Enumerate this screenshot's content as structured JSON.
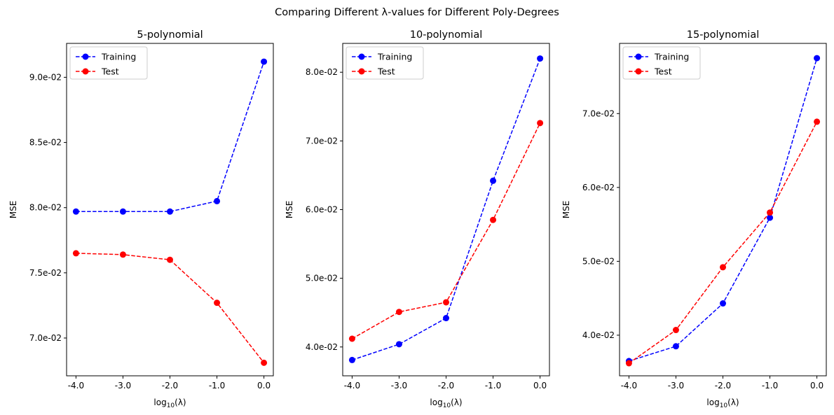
{
  "figure": {
    "suptitle": "Comparing Different λ-values for Different Poly-Degrees"
  },
  "chart_data": [
    {
      "type": "line",
      "title": "5-polynomial",
      "xlabel": "log10(λ)",
      "ylabel": "MSE",
      "x": [
        -4.0,
        -3.0,
        -2.0,
        -1.0,
        0.0
      ],
      "x_tick_labels": [
        "-4.0",
        "-3.0",
        "-2.0",
        "-1.0",
        "0.0"
      ],
      "xlim": [
        -4.2,
        0.2
      ],
      "ylim": [
        0.0671,
        0.0926
      ],
      "y_ticks": [
        0.07,
        0.075,
        0.08,
        0.085,
        0.09
      ],
      "y_tick_labels": [
        "7.0e-02",
        "7.5e-02",
        "8.0e-02",
        "8.5e-02",
        "9.0e-02"
      ],
      "legend_position": "top-left",
      "series": [
        {
          "name": "Training",
          "color": "#0000ff",
          "line_style": "dashed",
          "marker": "circle",
          "values": [
            0.0797,
            0.0797,
            0.0797,
            0.0805,
            0.0912
          ]
        },
        {
          "name": "Test",
          "color": "#ff0000",
          "line_style": "dashed",
          "marker": "circle",
          "values": [
            0.0765,
            0.0764,
            0.076,
            0.0727,
            0.0681
          ]
        }
      ]
    },
    {
      "type": "line",
      "title": "10-polynomial",
      "xlabel": "log10(λ)",
      "ylabel": "MSE",
      "x": [
        -4.0,
        -3.0,
        -2.0,
        -1.0,
        0.0
      ],
      "x_tick_labels": [
        "-4.0",
        "-3.0",
        "-2.0",
        "-1.0",
        "0.0"
      ],
      "xlim": [
        -4.2,
        0.2
      ],
      "ylim": [
        0.0358,
        0.0842
      ],
      "y_ticks": [
        0.04,
        0.05,
        0.06,
        0.07,
        0.08
      ],
      "y_tick_labels": [
        "4.0e-02",
        "5.0e-02",
        "6.0e-02",
        "7.0e-02",
        "8.0e-02"
      ],
      "legend_position": "top-left",
      "series": [
        {
          "name": "Training",
          "color": "#0000ff",
          "line_style": "dashed",
          "marker": "circle",
          "values": [
            0.0381,
            0.0404,
            0.0442,
            0.0642,
            0.082
          ]
        },
        {
          "name": "Test",
          "color": "#ff0000",
          "line_style": "dashed",
          "marker": "circle",
          "values": [
            0.0412,
            0.0451,
            0.0465,
            0.0585,
            0.0726
          ]
        }
      ]
    },
    {
      "type": "line",
      "title": "15-polynomial",
      "xlabel": "log10(λ)",
      "ylabel": "MSE",
      "x": [
        -4.0,
        -3.0,
        -2.0,
        -1.0,
        0.0
      ],
      "x_tick_labels": [
        "-4.0",
        "-3.0",
        "-2.0",
        "-1.0",
        "0.0"
      ],
      "xlim": [
        -4.2,
        0.2
      ],
      "ylim": [
        0.0345,
        0.0795
      ],
      "y_ticks": [
        0.04,
        0.05,
        0.06,
        0.07
      ],
      "y_tick_labels": [
        "4.0e-02",
        "5.0e-02",
        "6.0e-02",
        "7.0e-02"
      ],
      "legend_position": "top-left",
      "series": [
        {
          "name": "Training",
          "color": "#0000ff",
          "line_style": "dashed",
          "marker": "circle",
          "values": [
            0.0365,
            0.0385,
            0.0443,
            0.0559,
            0.0775
          ]
        },
        {
          "name": "Test",
          "color": "#ff0000",
          "line_style": "dashed",
          "marker": "circle",
          "values": [
            0.0362,
            0.0407,
            0.0492,
            0.0566,
            0.0689
          ]
        }
      ]
    }
  ]
}
